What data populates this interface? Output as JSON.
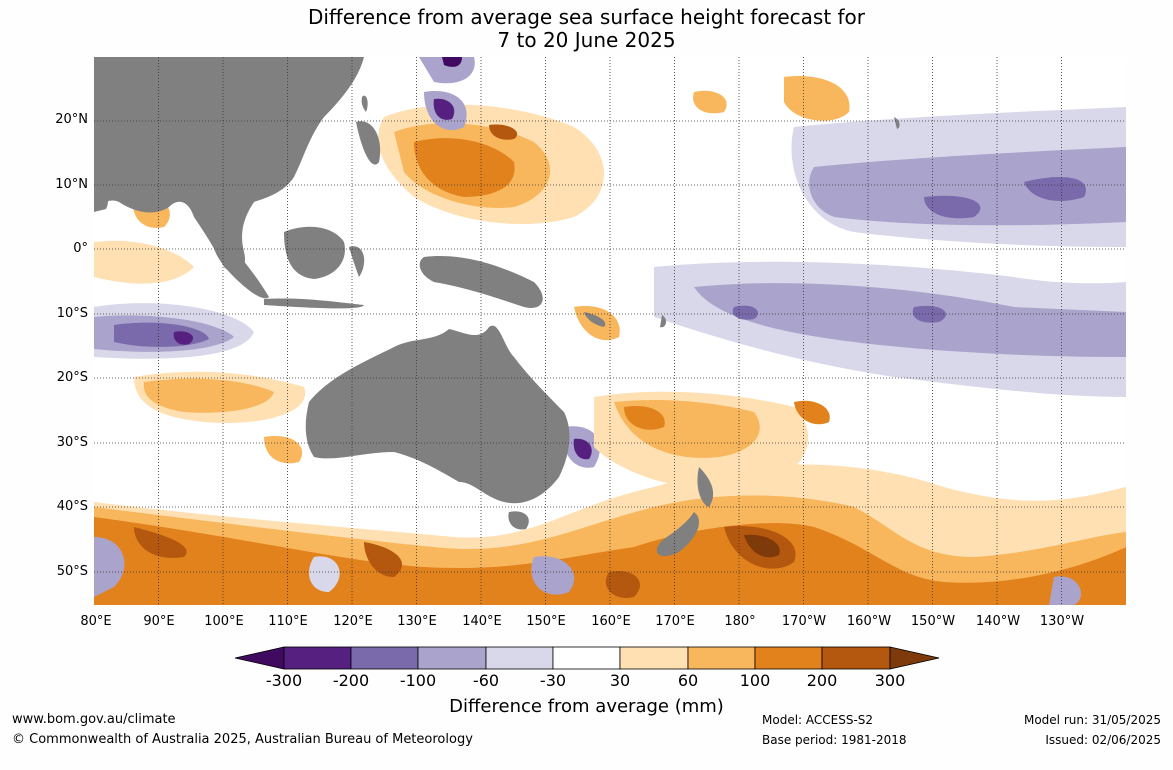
{
  "title_line1": "Difference from average sea surface height forecast for",
  "title_line2": "7 to 20 June 2025",
  "lat_labels": [
    "20°N",
    "10°N",
    "0°",
    "10°S",
    "20°S",
    "30°S",
    "40°S",
    "50°S"
  ],
  "lon_labels": [
    "80°E",
    "90°E",
    "100°E",
    "110°E",
    "120°E",
    "130°E",
    "140°E",
    "150°E",
    "160°E",
    "170°E",
    "180°",
    "170°W",
    "160°W",
    "150°W",
    "140°W",
    "130°W"
  ],
  "colorbar": {
    "labels": [
      "-300",
      "-200",
      "-100",
      "-60",
      "-30",
      "30",
      "60",
      "100",
      "200",
      "300"
    ],
    "colors": [
      "#3f0a5f",
      "#55207f",
      "#7a6aab",
      "#aaa3cc",
      "#d8d8ea",
      "#ffffff",
      "#ffe0b2",
      "#f9b75d",
      "#e2821d",
      "#b3580e",
      "#7e3a0a"
    ],
    "title": "Difference from average (mm)"
  },
  "colors": {
    "land": "#808080",
    "ocean_neutral": "#ffffff"
  },
  "footer": {
    "url": "www.bom.gov.au/climate",
    "copyright": "© Commonwealth of Australia 2025, Australian Bureau of Meteorology",
    "model": "Model: ACCESS-S2",
    "base_period": "Base period: 1981-2018",
    "model_run": "Model run: 31/05/2025",
    "issued": "Issued: 02/06/2025"
  }
}
